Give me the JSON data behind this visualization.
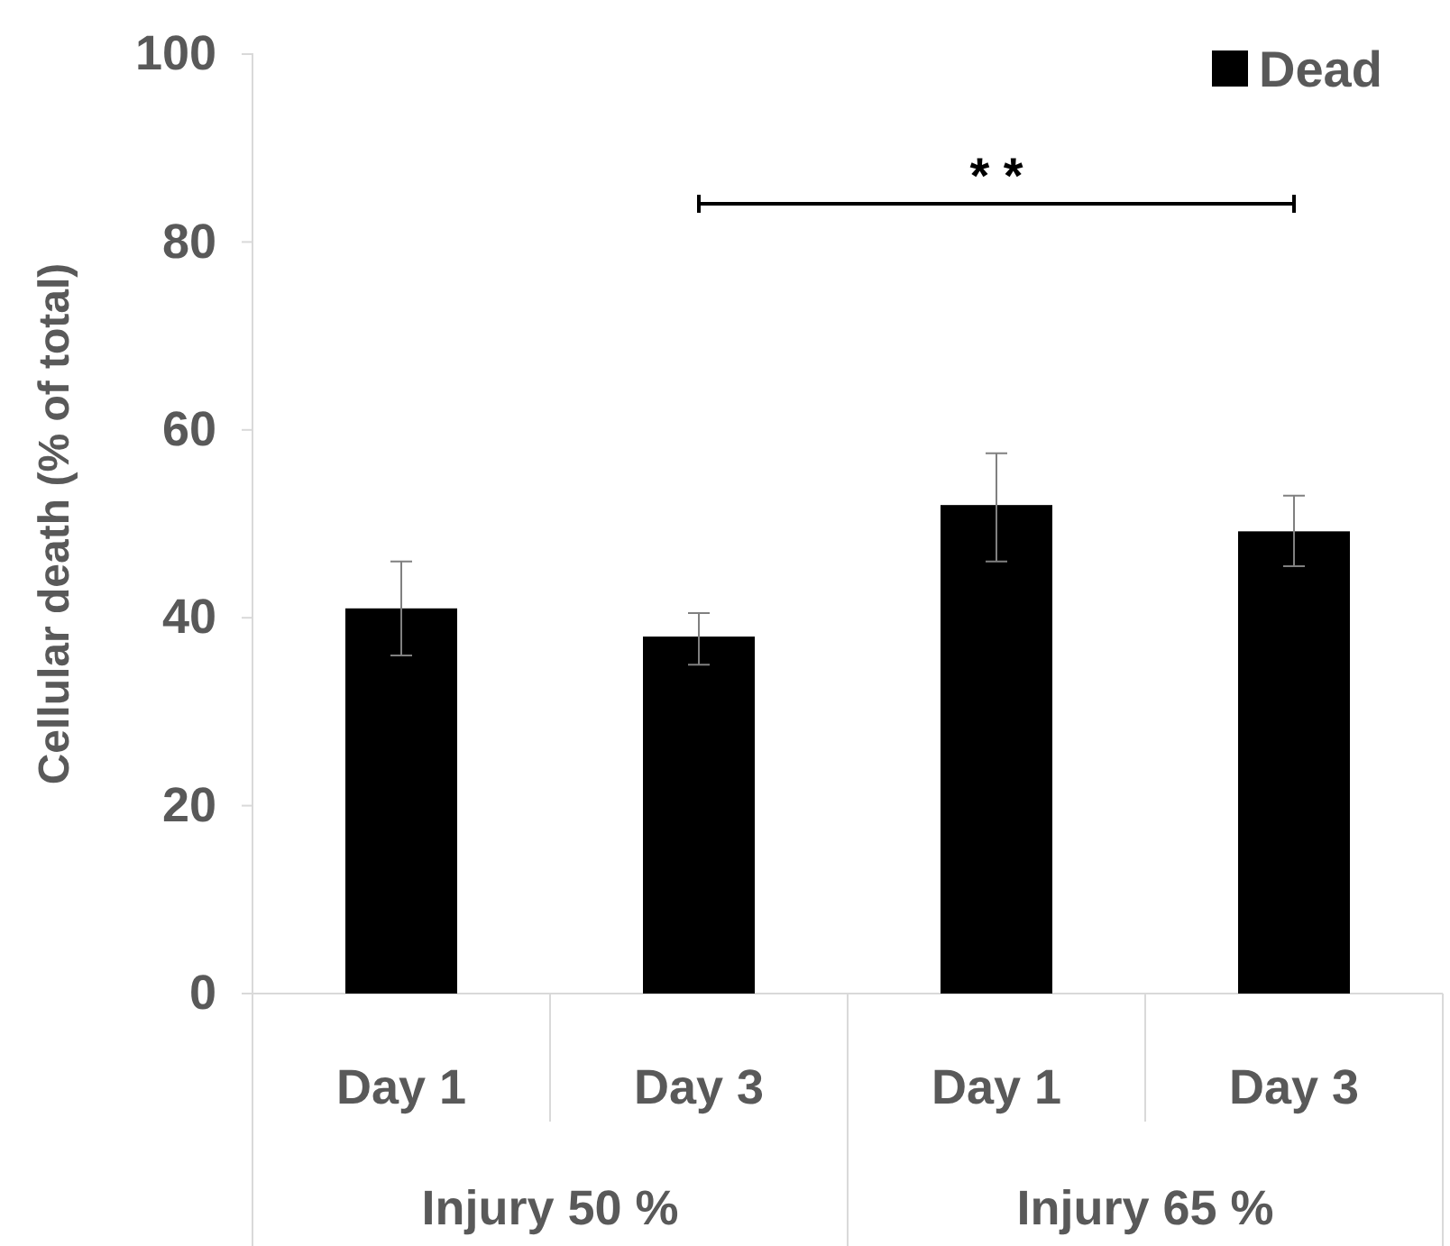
{
  "chart_data": {
    "type": "bar",
    "ylabel": "Cellular death (% of total)",
    "categories": [
      "Day 1",
      "Day 3",
      "Day 1",
      "Day 3"
    ],
    "series": [
      {
        "name": "Dead",
        "color": "#000000",
        "values": [
          41,
          38,
          52,
          49.2
        ],
        "errors": [
          [
            36,
            46
          ],
          [
            35,
            40.5
          ],
          [
            46,
            57.5
          ],
          [
            45.5,
            53
          ]
        ]
      }
    ],
    "ylim": [
      0,
      100
    ],
    "yticks": [
      0,
      20,
      40,
      60,
      80,
      100
    ],
    "annotations": [
      "Injury 50 %",
      "Injury 65 %",
      "* *"
    ],
    "legend": "top right",
    "grid": false
  }
}
